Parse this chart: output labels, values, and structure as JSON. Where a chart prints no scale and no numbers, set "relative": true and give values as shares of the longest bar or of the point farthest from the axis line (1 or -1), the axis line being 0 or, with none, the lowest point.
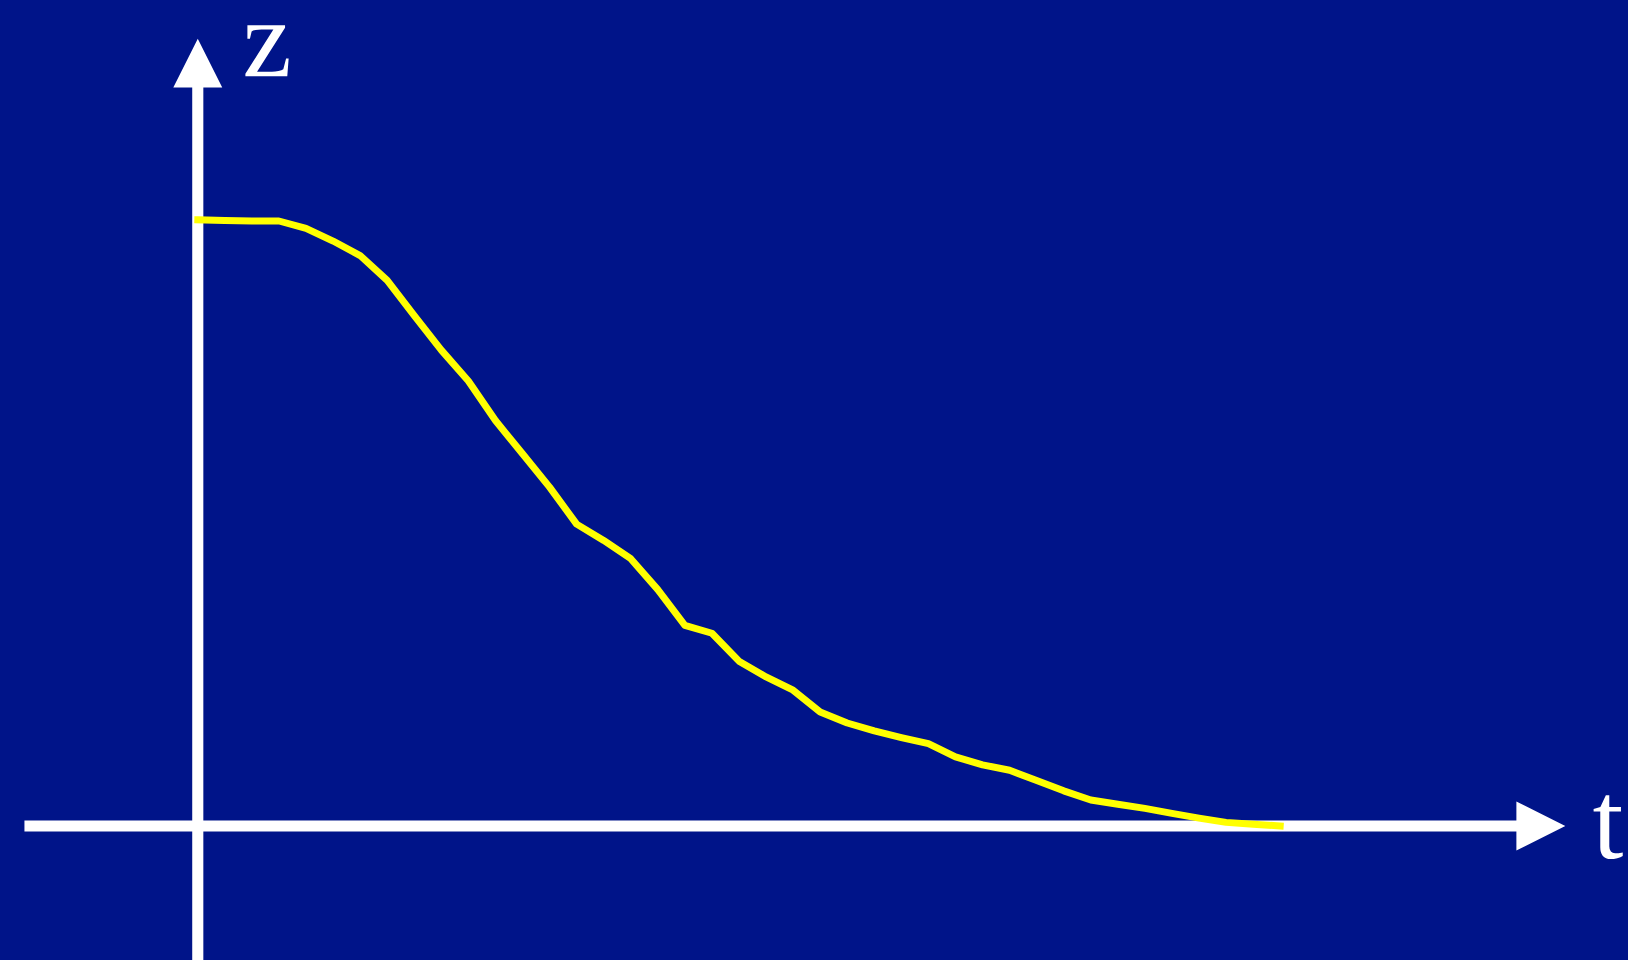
{
  "chart_data": {
    "type": "line",
    "relative": true,
    "xlabel": "t",
    "ylabel": "z",
    "categories": [
      null,
      null,
      null,
      null,
      null,
      null,
      null,
      null,
      null,
      null,
      null,
      null,
      null,
      null,
      null,
      null,
      null,
      null,
      null,
      null,
      null,
      null,
      null,
      null,
      null,
      null,
      null,
      null,
      null,
      null,
      null,
      null,
      null,
      null,
      null,
      null,
      null,
      null,
      null,
      null,
      null
    ],
    "series": [
      {
        "color": "#ffff00",
        "values": [
          1.0,
          0.999,
          0.998,
          0.998,
          0.986,
          0.965,
          0.941,
          0.9,
          0.842,
          0.785,
          0.734,
          0.669,
          0.614,
          0.559,
          0.498,
          0.471,
          0.441,
          0.39,
          0.331,
          0.318,
          0.272,
          0.246,
          0.224,
          0.188,
          0.17,
          0.157,
          0.146,
          0.136,
          0.114,
          0.101,
          0.092,
          0.075,
          0.058,
          0.043,
          0.036,
          0.029,
          0.021,
          0.013,
          0.006,
          0.003,
          0
        ]
      }
    ]
  }
}
